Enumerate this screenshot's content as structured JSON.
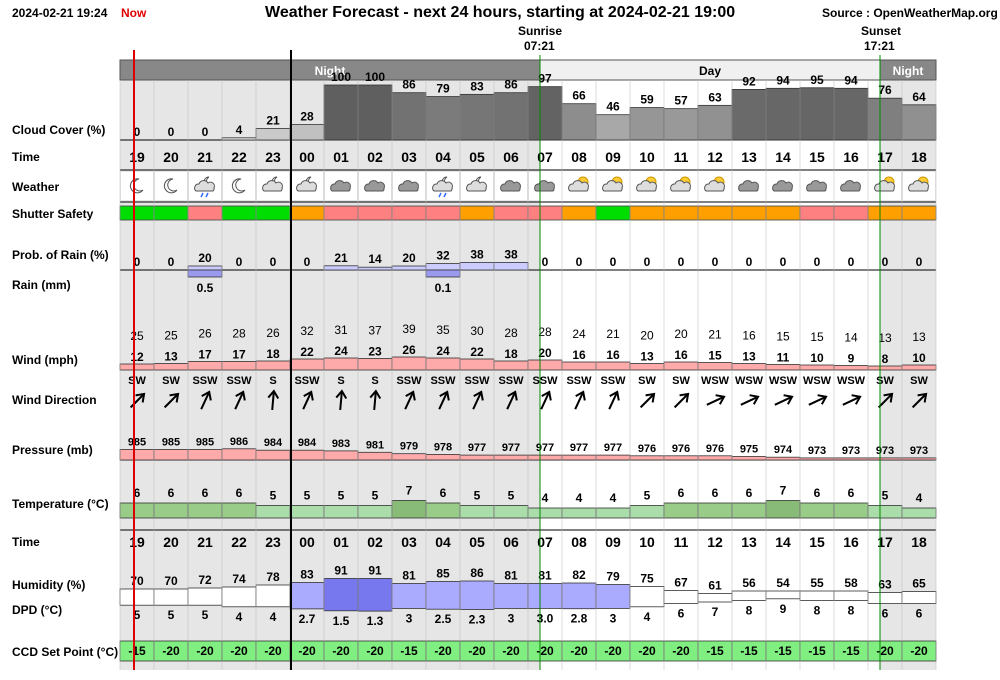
{
  "header": {
    "datetime": "2024-02-21 19:24",
    "now_label": "Now",
    "title": "Weather Forecast - next 24 hours, starting at 2024-02-21 19:00",
    "source": "Source : OpenWeatherMap.org",
    "sunrise_label": "Sunrise",
    "sunrise_time": "07:21",
    "sunset_label": "Sunset",
    "sunset_time": "17:21"
  },
  "period_labels": {
    "night": "Night",
    "day": "Day",
    "night2": "Night"
  },
  "row_labels": {
    "cloud": "Cloud Cover (%)",
    "time": "Time",
    "weather": "Weather",
    "shutter": "Shutter Safety",
    "prob_rain": "Prob. of Rain (%)",
    "rain": "Rain (mm)",
    "wind": "Wind (mph)",
    "wind_dir": "Wind Direction",
    "pressure": "Pressure (mb)",
    "temperature": "Temperature (°C)",
    "time2": "Time",
    "humidity": "Humidity (%)",
    "dpd": "DPD (°C)",
    "ccd": "CCD Set Point (°C)"
  },
  "colors": {
    "safe": "#00dd00",
    "unsafe": "#ff8080",
    "marginal": "#ffa000",
    "ccd": "#80ee80",
    "now_line": "#dd0000",
    "sun_line": "#008800"
  },
  "chart_data": {
    "type": "table",
    "hours": [
      "19",
      "20",
      "21",
      "22",
      "23",
      "00",
      "01",
      "02",
      "03",
      "04",
      "05",
      "06",
      "07",
      "08",
      "09",
      "10",
      "11",
      "12",
      "13",
      "14",
      "15",
      "16",
      "17",
      "18"
    ],
    "cloud_cover": [
      "0",
      "0",
      "0",
      "4",
      "21",
      "28",
      "100",
      "100",
      "86",
      "79",
      "83",
      "86",
      "97",
      "66",
      "46",
      "59",
      "57",
      "63",
      "92",
      "94",
      "95",
      "94",
      "76",
      "64"
    ],
    "weather": [
      "clear-night-icon",
      "clear-night-icon",
      "rain-night-icon",
      "clear-night-icon",
      "partly-cloudy-night-icon",
      "partly-cloudy-night-icon",
      "cloudy-icon",
      "cloudy-icon",
      "cloudy-icon",
      "rain-night-icon",
      "partly-cloudy-night-icon",
      "cloudy-icon",
      "cloudy-icon",
      "partly-cloudy-day-icon",
      "partly-cloudy-day-icon",
      "partly-cloudy-day-icon",
      "partly-cloudy-day-icon",
      "partly-cloudy-day-icon",
      "cloudy-icon",
      "cloudy-icon",
      "cloudy-icon",
      "cloudy-icon",
      "partly-cloudy-day-icon",
      "partly-cloudy-day-icon"
    ],
    "shutter_safety": [
      "safe",
      "safe",
      "unsafe",
      "safe",
      "safe",
      "marginal",
      "unsafe",
      "unsafe",
      "unsafe",
      "unsafe",
      "marginal",
      "unsafe",
      "unsafe",
      "marginal",
      "safe",
      "marginal",
      "marginal",
      "marginal",
      "marginal",
      "marginal",
      "unsafe",
      "unsafe",
      "marginal",
      "marginal"
    ],
    "prob_rain": [
      "0",
      "0",
      "20",
      "0",
      "0",
      "0",
      "21",
      "14",
      "20",
      "32",
      "38",
      "38",
      "0",
      "0",
      "0",
      "0",
      "0",
      "0",
      "0",
      "0",
      "0",
      "0",
      "0",
      "0"
    ],
    "rain_mm": [
      "",
      "",
      "0.5",
      "",
      "",
      "",
      "",
      "",
      "",
      "0.1",
      "",
      "",
      "",
      "",
      "",
      "",
      "",
      "",
      "",
      "",
      "",
      "",
      "",
      ""
    ],
    "wind_gust": [
      "25",
      "25",
      "26",
      "28",
      "26",
      "32",
      "31",
      "37",
      "39",
      "35",
      "30",
      "28",
      "28",
      "24",
      "21",
      "20",
      "20",
      "21",
      "16",
      "15",
      "15",
      "14",
      "13",
      "13"
    ],
    "wind_speed": [
      "12",
      "13",
      "17",
      "17",
      "18",
      "22",
      "24",
      "23",
      "26",
      "24",
      "22",
      "18",
      "20",
      "16",
      "16",
      "13",
      "16",
      "15",
      "13",
      "11",
      "10",
      "9",
      "8",
      "10"
    ],
    "wind_dir": [
      "SW",
      "SW",
      "SSW",
      "SSW",
      "S",
      "SSW",
      "S",
      "S",
      "SSW",
      "SSW",
      "SSW",
      "SSW",
      "SSW",
      "SSW",
      "SSW",
      "SW",
      "SW",
      "WSW",
      "WSW",
      "WSW",
      "WSW",
      "WSW",
      "SW",
      "SW"
    ],
    "wind_angle": [
      45,
      45,
      25,
      25,
      5,
      25,
      5,
      5,
      25,
      25,
      25,
      25,
      25,
      25,
      25,
      45,
      45,
      65,
      65,
      65,
      65,
      65,
      45,
      45
    ],
    "pressure": [
      "985",
      "985",
      "985",
      "986",
      "984",
      "984",
      "983",
      "981",
      "979",
      "978",
      "977",
      "977",
      "977",
      "977",
      "977",
      "976",
      "976",
      "976",
      "975",
      "974",
      "973",
      "973",
      "973",
      "973"
    ],
    "temperature": [
      "6",
      "6",
      "6",
      "6",
      "5",
      "5",
      "5",
      "5",
      "7",
      "6",
      "5",
      "5",
      "4",
      "4",
      "4",
      "5",
      "6",
      "6",
      "6",
      "7",
      "6",
      "6",
      "5",
      "4"
    ],
    "humidity": [
      "70",
      "70",
      "72",
      "74",
      "78",
      "83",
      "91",
      "91",
      "81",
      "85",
      "86",
      "81",
      "81",
      "82",
      "79",
      "75",
      "67",
      "61",
      "56",
      "54",
      "55",
      "58",
      "63",
      "65"
    ],
    "dpd": [
      "5",
      "5",
      "5",
      "4",
      "4",
      "2.7",
      "1.5",
      "1.3",
      "3",
      "2.5",
      "2.3",
      "3",
      "3.0",
      "2.8",
      "3",
      "4",
      "6",
      "7",
      "8",
      "9",
      "8",
      "8",
      "6",
      "6"
    ],
    "ccd_set_point": [
      "-15",
      "-20",
      "-20",
      "-20",
      "-20",
      "-20",
      "-20",
      "-20",
      "-15",
      "-20",
      "-20",
      "-20",
      "-20",
      "-20",
      "-20",
      "-20",
      "-20",
      "-15",
      "-15",
      "-15",
      "-15",
      "-15",
      "-20",
      "-20"
    ]
  }
}
